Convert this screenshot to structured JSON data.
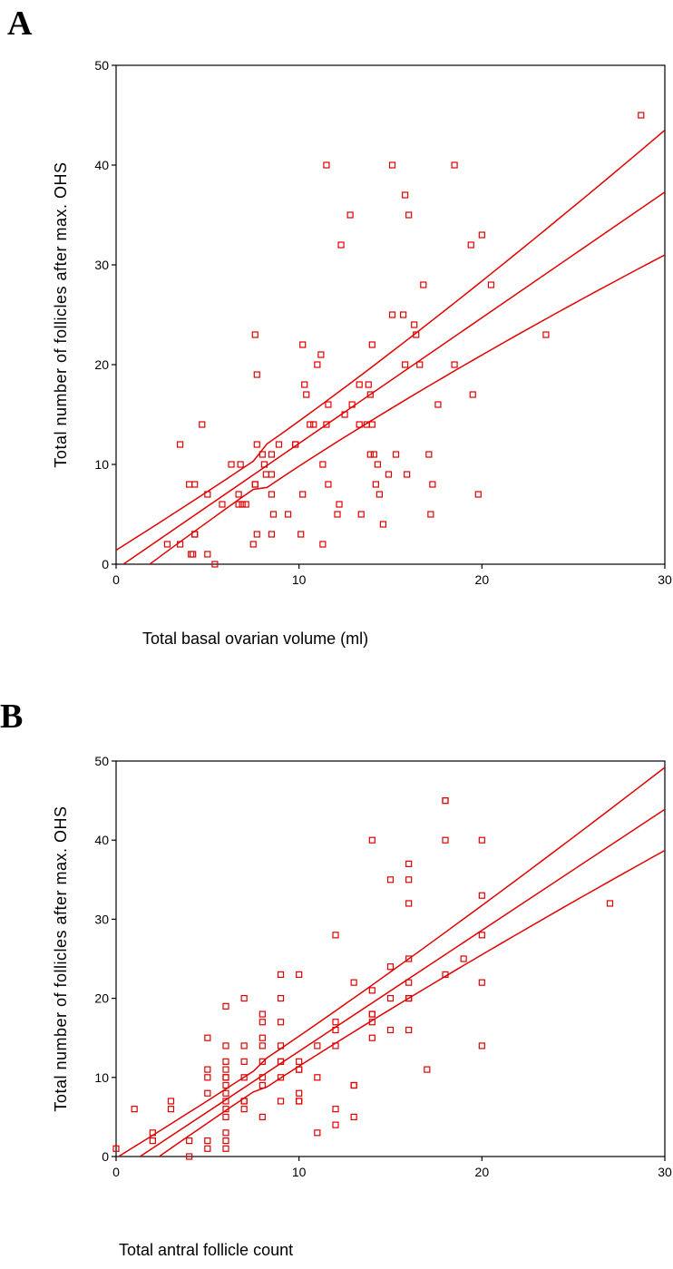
{
  "colors": {
    "marker": "#e00000",
    "fit": "#e00000",
    "axis": "#000000"
  },
  "chart_data": [
    {
      "panel": "A",
      "type": "scatter",
      "xlabel": "Total basal ovarian volume (ml)",
      "ylabel": "Total number of follicles after max. OHS",
      "xlim": [
        0,
        30
      ],
      "ylim": [
        0,
        50
      ],
      "xticks": [
        0,
        10,
        20,
        30
      ],
      "yticks": [
        0,
        10,
        20,
        30,
        40,
        50
      ],
      "grid": false,
      "fit": {
        "slope": 1.26,
        "intercept": -0.5,
        "upper_ci_at_0": 3.4,
        "upper_ci_at_30": 43.5,
        "lower_ci_at_0": -4.6,
        "lower_ci_at_30": 31.0
      },
      "points": [
        [
          28.7,
          45
        ],
        [
          11.5,
          40
        ],
        [
          15.1,
          40
        ],
        [
          18.5,
          40
        ],
        [
          15.8,
          37
        ],
        [
          12.8,
          35
        ],
        [
          16.0,
          35
        ],
        [
          20.0,
          33
        ],
        [
          12.3,
          32
        ],
        [
          19.4,
          32
        ],
        [
          16.8,
          28
        ],
        [
          20.5,
          28
        ],
        [
          15.1,
          25
        ],
        [
          15.7,
          25
        ],
        [
          16.3,
          24
        ],
        [
          16.4,
          23
        ],
        [
          23.5,
          23
        ],
        [
          7.6,
          23
        ],
        [
          10.2,
          22
        ],
        [
          14.0,
          22
        ],
        [
          11.2,
          21
        ],
        [
          11.0,
          20
        ],
        [
          15.8,
          20
        ],
        [
          16.6,
          20
        ],
        [
          18.5,
          20
        ],
        [
          7.7,
          19
        ],
        [
          10.3,
          18
        ],
        [
          13.3,
          18
        ],
        [
          13.8,
          18
        ],
        [
          10.4,
          17
        ],
        [
          13.9,
          17
        ],
        [
          19.5,
          17
        ],
        [
          11.6,
          16
        ],
        [
          12.9,
          16
        ],
        [
          17.6,
          16
        ],
        [
          12.5,
          15
        ],
        [
          10.6,
          14
        ],
        [
          10.8,
          14
        ],
        [
          11.5,
          14
        ],
        [
          13.3,
          14
        ],
        [
          13.7,
          14
        ],
        [
          14.0,
          14
        ],
        [
          4.7,
          14
        ],
        [
          3.5,
          12
        ],
        [
          7.7,
          12
        ],
        [
          8.9,
          12
        ],
        [
          9.8,
          12
        ],
        [
          9.8,
          12
        ],
        [
          8.0,
          11
        ],
        [
          8.5,
          11
        ],
        [
          13.9,
          11
        ],
        [
          14.1,
          11
        ],
        [
          15.3,
          11
        ],
        [
          17.1,
          11
        ],
        [
          6.3,
          10
        ],
        [
          6.8,
          10
        ],
        [
          8.1,
          10
        ],
        [
          11.3,
          10
        ],
        [
          14.3,
          10
        ],
        [
          8.2,
          9
        ],
        [
          8.5,
          9
        ],
        [
          14.9,
          9
        ],
        [
          15.9,
          9
        ],
        [
          4.0,
          8
        ],
        [
          4.3,
          8
        ],
        [
          7.6,
          8
        ],
        [
          7.6,
          8
        ],
        [
          11.6,
          8
        ],
        [
          14.2,
          8
        ],
        [
          17.3,
          8
        ],
        [
          5.0,
          7
        ],
        [
          6.7,
          7
        ],
        [
          8.5,
          7
        ],
        [
          10.2,
          7
        ],
        [
          14.4,
          7
        ],
        [
          19.8,
          7
        ],
        [
          5.8,
          6
        ],
        [
          6.7,
          6
        ],
        [
          6.9,
          6
        ],
        [
          7.1,
          6
        ],
        [
          12.2,
          6
        ],
        [
          8.6,
          5
        ],
        [
          9.4,
          5
        ],
        [
          12.1,
          5
        ],
        [
          13.4,
          5
        ],
        [
          17.2,
          5
        ],
        [
          14.6,
          4
        ],
        [
          4.3,
          3
        ],
        [
          4.3,
          3
        ],
        [
          7.7,
          3
        ],
        [
          8.5,
          3
        ],
        [
          10.1,
          3
        ],
        [
          2.8,
          2
        ],
        [
          3.5,
          2
        ],
        [
          7.5,
          2
        ],
        [
          11.3,
          2
        ],
        [
          4.1,
          1
        ],
        [
          4.2,
          1
        ],
        [
          5.0,
          1
        ],
        [
          5.4,
          0
        ]
      ]
    },
    {
      "panel": "B",
      "type": "scatter",
      "xlabel": "Total antral follicle count",
      "ylabel": "Total number of follicles after max. OHS",
      "xlim": [
        0,
        30
      ],
      "ylim": [
        0,
        50
      ],
      "xticks": [
        0,
        10,
        20,
        30
      ],
      "yticks": [
        0,
        10,
        20,
        30,
        40,
        50
      ],
      "grid": false,
      "fit": {
        "slope": 1.53,
        "intercept": -2.0,
        "upper_ci_at_0": 1.7,
        "upper_ci_at_30": 49.2,
        "lower_ci_at_0": -5.7,
        "lower_ci_at_30": 38.7
      },
      "points": [
        [
          18,
          45
        ],
        [
          18,
          45
        ],
        [
          14,
          40
        ],
        [
          18,
          40
        ],
        [
          20,
          40
        ],
        [
          16,
          37
        ],
        [
          15,
          35
        ],
        [
          16,
          35
        ],
        [
          20,
          33
        ],
        [
          16,
          32
        ],
        [
          27,
          32
        ],
        [
          12,
          28
        ],
        [
          20,
          28
        ],
        [
          19,
          25
        ],
        [
          16,
          25
        ],
        [
          15,
          24
        ],
        [
          9,
          23
        ],
        [
          10,
          23
        ],
        [
          18,
          23
        ],
        [
          13,
          22
        ],
        [
          16,
          22
        ],
        [
          20,
          22
        ],
        [
          14,
          21
        ],
        [
          7,
          20
        ],
        [
          9,
          20
        ],
        [
          15,
          20
        ],
        [
          16,
          20
        ],
        [
          16,
          20
        ],
        [
          6,
          19
        ],
        [
          8,
          18
        ],
        [
          14,
          18
        ],
        [
          14,
          18
        ],
        [
          8,
          17
        ],
        [
          9,
          17
        ],
        [
          12,
          17
        ],
        [
          14,
          17
        ],
        [
          12,
          16
        ],
        [
          15,
          16
        ],
        [
          16,
          16
        ],
        [
          5,
          15
        ],
        [
          8,
          15
        ],
        [
          14,
          15
        ],
        [
          6,
          14
        ],
        [
          7,
          14
        ],
        [
          8,
          14
        ],
        [
          9,
          14
        ],
        [
          11,
          14
        ],
        [
          12,
          14
        ],
        [
          20,
          14
        ],
        [
          6,
          12
        ],
        [
          7,
          12
        ],
        [
          8,
          12
        ],
        [
          9,
          12
        ],
        [
          9,
          12
        ],
        [
          10,
          12
        ],
        [
          5,
          11
        ],
        [
          6,
          11
        ],
        [
          10,
          11
        ],
        [
          10,
          11
        ],
        [
          17,
          11
        ],
        [
          5,
          10
        ],
        [
          6,
          10
        ],
        [
          6,
          10
        ],
        [
          7,
          10
        ],
        [
          8,
          10
        ],
        [
          9,
          10
        ],
        [
          11,
          10
        ],
        [
          6,
          9
        ],
        [
          8,
          9
        ],
        [
          13,
          9
        ],
        [
          13,
          9
        ],
        [
          5,
          8
        ],
        [
          6,
          8
        ],
        [
          10,
          8
        ],
        [
          10,
          7
        ],
        [
          3,
          7
        ],
        [
          6,
          7
        ],
        [
          7,
          7
        ],
        [
          7,
          7
        ],
        [
          9,
          7
        ],
        [
          10,
          7
        ],
        [
          1,
          6
        ],
        [
          3,
          6
        ],
        [
          6,
          6
        ],
        [
          7,
          6
        ],
        [
          12,
          6
        ],
        [
          6,
          5
        ],
        [
          8,
          5
        ],
        [
          13,
          5
        ],
        [
          12,
          4
        ],
        [
          2,
          3
        ],
        [
          6,
          3
        ],
        [
          11,
          3
        ],
        [
          2,
          2
        ],
        [
          4,
          2
        ],
        [
          5,
          2
        ],
        [
          6,
          2
        ],
        [
          0,
          1
        ],
        [
          5,
          1
        ],
        [
          6,
          1
        ],
        [
          4,
          0
        ]
      ]
    }
  ]
}
